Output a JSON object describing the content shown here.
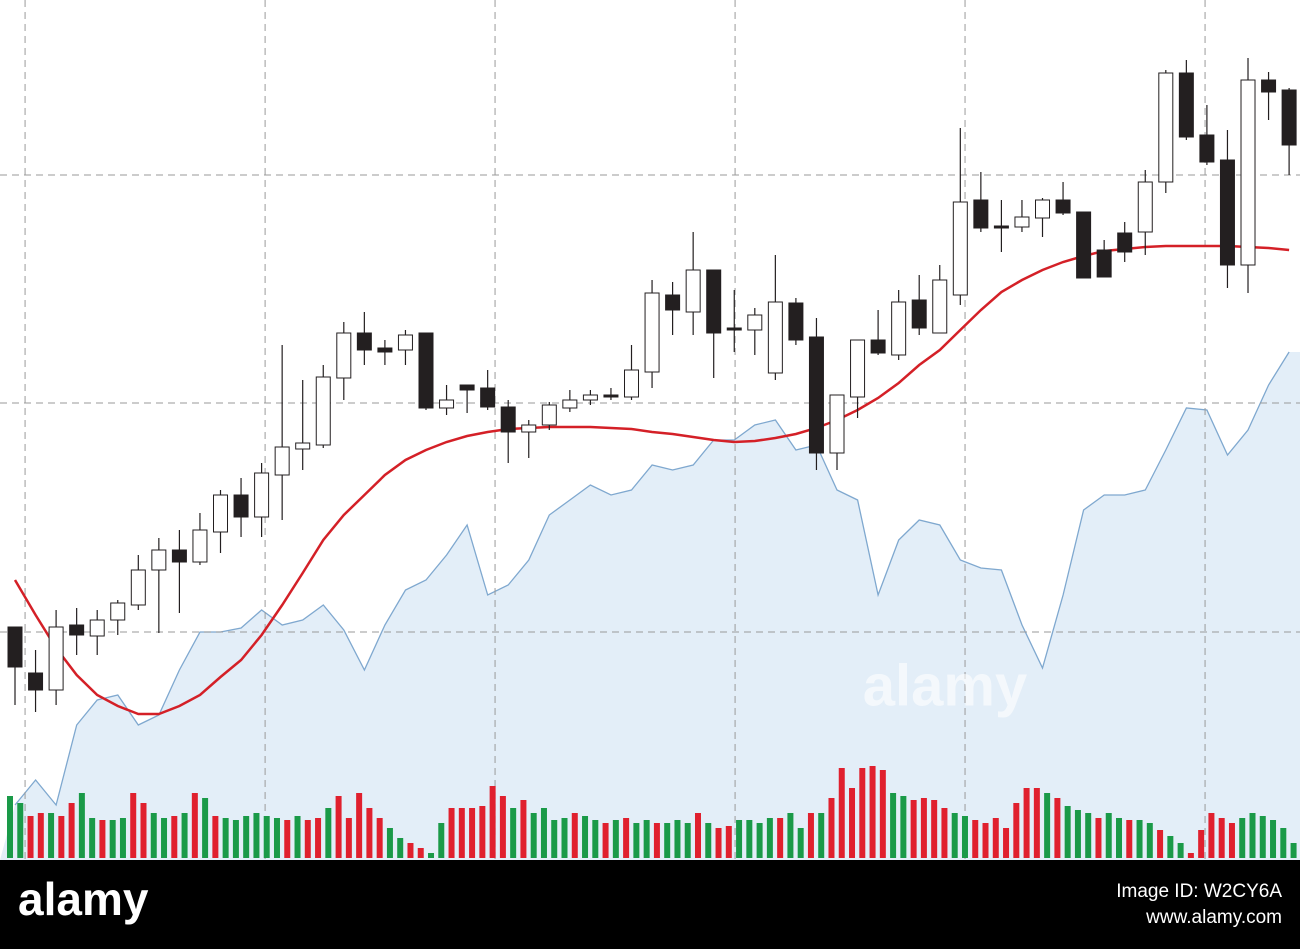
{
  "chart_data": {
    "type": "candlestick",
    "x": [
      0,
      1,
      2,
      3,
      4,
      5,
      6,
      7,
      8,
      9,
      10,
      11,
      12,
      13,
      14,
      15,
      16,
      17,
      18,
      19,
      20,
      21,
      22,
      23,
      24,
      25,
      26,
      27,
      28,
      29,
      30,
      31,
      32,
      33,
      34,
      35,
      36,
      37,
      38,
      39,
      40,
      41,
      42,
      43,
      44,
      45,
      46,
      47,
      48,
      49,
      50,
      51,
      52,
      53,
      54,
      55,
      56,
      57,
      58,
      59,
      60,
      61,
      62
    ],
    "open": [
      233,
      187,
      170,
      235,
      224,
      240,
      255,
      290,
      310,
      298,
      328,
      365,
      343,
      385,
      411,
      415,
      482,
      527,
      512,
      510,
      527,
      452,
      475,
      472,
      453,
      428,
      435,
      452,
      460,
      465,
      463,
      488,
      565,
      548,
      590,
      532,
      530,
      487,
      557,
      523,
      407,
      463,
      520,
      505,
      560,
      527,
      565,
      660,
      634,
      633,
      642,
      660,
      648,
      610,
      627,
      628,
      678,
      787,
      725,
      700,
      595,
      780,
      770
    ],
    "close": [
      193,
      170,
      233,
      225,
      240,
      257,
      290,
      310,
      298,
      330,
      365,
      343,
      387,
      413,
      417,
      483,
      527,
      510,
      508,
      525,
      452,
      460,
      470,
      453,
      428,
      435,
      455,
      460,
      465,
      463,
      490,
      567,
      550,
      590,
      527,
      530,
      545,
      558,
      520,
      407,
      465,
      520,
      507,
      558,
      532,
      580,
      658,
      632,
      632,
      643,
      660,
      647,
      582,
      583,
      608,
      678,
      787,
      723,
      698,
      595,
      780,
      768,
      715
    ],
    "high": [
      233,
      210,
      250,
      252,
      250,
      260,
      305,
      322,
      330,
      347,
      370,
      382,
      397,
      515,
      480,
      495,
      538,
      548,
      520,
      530,
      527,
      475,
      475,
      490,
      460,
      440,
      458,
      470,
      470,
      472,
      515,
      580,
      578,
      628,
      590,
      570,
      552,
      605,
      562,
      542,
      465,
      520,
      550,
      570,
      585,
      595,
      732,
      688,
      660,
      660,
      662,
      678,
      648,
      620,
      638,
      690,
      790,
      800,
      755,
      730,
      802,
      788,
      772
    ],
    "low": [
      155,
      148,
      155,
      205,
      205,
      225,
      250,
      227,
      247,
      295,
      307,
      323,
      323,
      340,
      390,
      412,
      460,
      495,
      495,
      495,
      450,
      445,
      447,
      450,
      397,
      402,
      430,
      448,
      455,
      460,
      460,
      472,
      525,
      525,
      482,
      508,
      505,
      480,
      515,
      390,
      390,
      442,
      505,
      500,
      525,
      527,
      555,
      628,
      608,
      628,
      623,
      645,
      582,
      583,
      598,
      605,
      667,
      720,
      695,
      572,
      567,
      740,
      685
    ],
    "up_color": "#ffffff",
    "down_color": "#231f20",
    "lines": [
      {
        "kind": "area",
        "color": "#7fa8cf",
        "fill": "#e3eef8",
        "values": [
          55,
          80,
          55,
          135,
          160,
          165,
          135,
          145,
          190,
          228,
          228,
          232,
          250,
          235,
          240,
          255,
          230,
          190,
          235,
          270,
          280,
          305,
          335,
          265,
          275,
          300,
          345,
          360,
          375,
          365,
          370,
          395,
          390,
          395,
          420,
          420,
          435,
          440,
          410,
          415,
          370,
          360,
          265,
          320,
          340,
          335,
          300,
          292,
          290,
          235,
          192,
          265,
          350,
          365,
          365,
          370,
          410,
          452,
          450,
          405,
          430,
          475,
          508
        ]
      },
      {
        "kind": "line",
        "color": "#d42027",
        "values": [
          280,
          245,
          212,
          185,
          165,
          154,
          146,
          146,
          154,
          165,
          183,
          200,
          225,
          255,
          287,
          320,
          345,
          365,
          385,
          400,
          410,
          418,
          424,
          428,
          431,
          432,
          433,
          433,
          433,
          432,
          431,
          428,
          426,
          423,
          420,
          418,
          419,
          422,
          426,
          432,
          440,
          450,
          462,
          477,
          495,
          510,
          530,
          550,
          568,
          580,
          590,
          598,
          604,
          609,
          611,
          613,
          614,
          614,
          614,
          614,
          613,
          612,
          610
        ]
      }
    ],
    "volume": {
      "values": [
        62,
        55,
        42,
        45,
        45,
        42,
        55,
        65,
        40,
        38,
        38,
        40,
        65,
        55,
        45,
        40,
        42,
        45,
        65,
        60,
        42,
        40,
        38,
        42,
        45,
        42,
        40,
        38,
        42,
        38,
        40,
        50,
        62,
        40,
        65,
        50,
        40,
        30,
        20,
        15,
        10,
        5,
        35,
        50,
        50,
        50,
        52,
        72,
        62,
        50,
        58,
        45,
        50,
        38,
        40,
        45,
        42,
        38,
        35,
        38,
        40,
        35,
        38,
        35,
        35,
        38,
        35,
        45,
        35,
        30,
        32,
        38,
        38,
        35,
        40,
        40,
        45,
        30,
        45,
        45,
        60,
        90,
        70,
        90,
        92,
        88,
        65,
        62,
        58,
        60,
        58,
        50,
        45,
        42,
        38,
        35,
        40,
        30,
        55,
        70,
        70,
        65,
        60,
        52,
        48,
        45,
        40,
        45,
        40,
        38,
        38,
        35,
        28,
        22,
        15,
        5,
        28,
        45,
        40,
        35,
        40,
        45,
        42,
        38,
        30,
        15
      ],
      "colors": [
        "#1a9a48",
        "#1a9a48",
        "#e0202e",
        "#e0202e",
        "#1a9a48",
        "#e0202e",
        "#e0202e",
        "#1a9a48",
        "#1a9a48",
        "#e0202e",
        "#1a9a48",
        "#1a9a48",
        "#e0202e",
        "#e0202e",
        "#1a9a48",
        "#1a9a48",
        "#e0202e",
        "#1a9a48",
        "#e0202e",
        "#1a9a48",
        "#e0202e",
        "#1a9a48",
        "#1a9a48",
        "#1a9a48",
        "#1a9a48",
        "#1a9a48",
        "#1a9a48",
        "#e0202e",
        "#1a9a48",
        "#e0202e",
        "#e0202e",
        "#1a9a48",
        "#e0202e",
        "#e0202e",
        "#e0202e",
        "#e0202e",
        "#e0202e",
        "#1a9a48",
        "#1a9a48",
        "#e0202e",
        "#e0202e",
        "#1a9a48",
        "#1a9a48",
        "#e0202e",
        "#e0202e",
        "#e0202e",
        "#e0202e",
        "#e0202e",
        "#e0202e",
        "#1a9a48",
        "#e0202e",
        "#1a9a48",
        "#1a9a48",
        "#1a9a48",
        "#1a9a48",
        "#e0202e",
        "#1a9a48",
        "#1a9a48",
        "#e0202e",
        "#1a9a48",
        "#e0202e",
        "#1a9a48",
        "#1a9a48",
        "#e0202e",
        "#1a9a48",
        "#1a9a48",
        "#1a9a48",
        "#e0202e",
        "#1a9a48",
        "#e0202e",
        "#e0202e",
        "#1a9a48",
        "#1a9a48",
        "#1a9a48",
        "#1a9a48",
        "#e0202e",
        "#1a9a48",
        "#1a9a48",
        "#e0202e",
        "#1a9a48",
        "#e0202e",
        "#e0202e",
        "#e0202e",
        "#e0202e",
        "#e0202e",
        "#e0202e",
        "#1a9a48",
        "#1a9a48",
        "#e0202e",
        "#e0202e",
        "#e0202e",
        "#e0202e",
        "#1a9a48",
        "#1a9a48",
        "#e0202e",
        "#e0202e",
        "#e0202e",
        "#e0202e",
        "#e0202e",
        "#e0202e",
        "#e0202e",
        "#1a9a48",
        "#e0202e",
        "#1a9a48",
        "#1a9a48",
        "#1a9a48",
        "#e0202e",
        "#1a9a48",
        "#1a9a48",
        "#e0202e",
        "#1a9a48",
        "#1a9a48",
        "#e0202e",
        "#1a9a48",
        "#1a9a48",
        "#e0202e",
        "#e0202e",
        "#e0202e",
        "#e0202e",
        "#e0202e",
        "#1a9a48",
        "#1a9a48",
        "#1a9a48",
        "#1a9a48",
        "#1a9a48",
        "#1a9a48"
      ]
    },
    "xlim": [
      -0.73,
      62.53
    ],
    "xticks": [
      0.49,
      12.17,
      23.36,
      35.04,
      46.23,
      57.91
    ],
    "ylim": [
      0,
      860
    ],
    "yticks": [
      228,
      457,
      685
    ],
    "grid": true
  },
  "watermark": "alamy",
  "footer": {
    "logo": "alamy",
    "image_id": "Image ID: W2CY6A",
    "url": "www.alamy.com"
  }
}
